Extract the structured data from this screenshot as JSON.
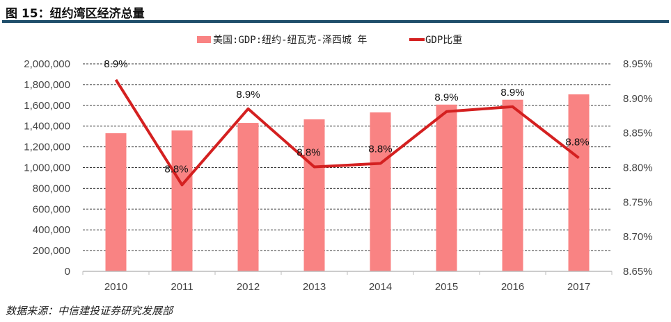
{
  "header": {
    "title": "图 15：纽约湾区经济总量"
  },
  "footer": {
    "source": "数据来源：中信建投证券研究发展部"
  },
  "chart_data": {
    "type": "bar+line",
    "title": "",
    "categories": [
      "2010",
      "2011",
      "2012",
      "2013",
      "2014",
      "2015",
      "2016",
      "2017"
    ],
    "series": [
      {
        "name": "美国:GDP:纽约-纽瓦克-泽西城 年",
        "type": "bar",
        "axis": "left",
        "color": "#f98383",
        "values": [
          1331000,
          1358000,
          1431000,
          1465000,
          1532000,
          1607000,
          1654000,
          1706000
        ]
      },
      {
        "name": "GDP比重",
        "type": "line",
        "axis": "right",
        "color": "#d42020",
        "values": [
          8.927,
          8.775,
          8.885,
          8.801,
          8.806,
          8.881,
          8.888,
          8.814
        ],
        "data_labels": [
          "8.9%",
          "8.8%",
          "8.9%",
          "8.8%",
          "8.8%",
          "8.9%",
          "8.9%",
          "8.8%"
        ]
      }
    ],
    "left_axis": {
      "ylim": [
        0,
        2000000
      ],
      "ticks": [
        "0",
        "200,000",
        "400,000",
        "600,000",
        "800,000",
        "1,000,000",
        "1,200,000",
        "1,400,000",
        "1,600,000",
        "1,800,000",
        "2,000,000"
      ]
    },
    "right_axis": {
      "ylim": [
        8.65,
        8.95
      ],
      "ticks": [
        "8.65%",
        "8.70%",
        "8.75%",
        "8.80%",
        "8.85%",
        "8.90%",
        "8.95%"
      ]
    },
    "grid": "horizontal dashed",
    "legend": "top"
  }
}
